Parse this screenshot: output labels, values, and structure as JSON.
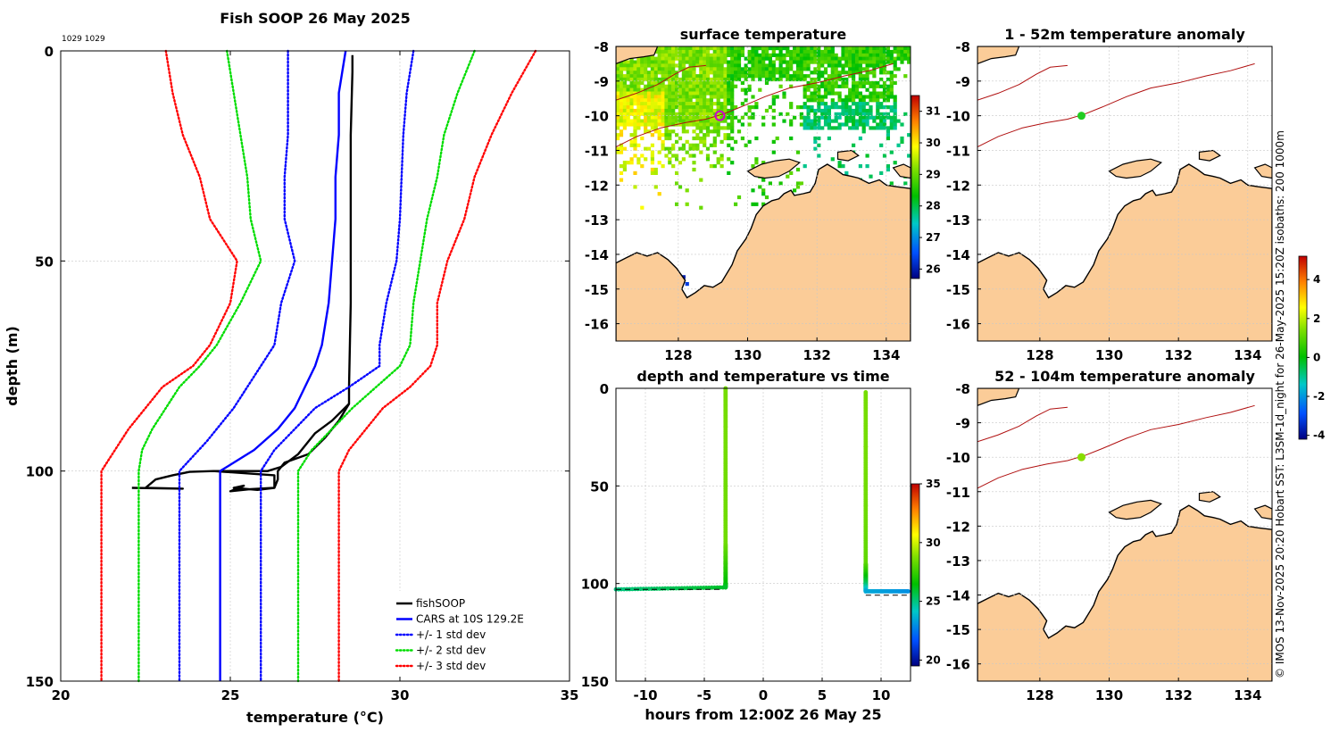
{
  "chart_data": [
    {
      "type": "line",
      "id": "profile",
      "title": "Fish SOOP 26 May 2025",
      "annotation": "1029 1029",
      "xlabel": "temperature (°C)",
      "ylabel": "depth (m)",
      "xlim": [
        20,
        35
      ],
      "ylim": [
        150,
        0
      ],
      "xticks": [
        "20",
        "25",
        "30",
        "35"
      ],
      "yticks": [
        "0",
        "50",
        "100",
        "150"
      ],
      "series": [
        {
          "name": "fishSOOP",
          "color": "#000000",
          "style": "solid",
          "points": [
            [
              28.6,
              1
            ],
            [
              28.6,
              5
            ],
            [
              28.55,
              20
            ],
            [
              28.55,
              40
            ],
            [
              28.55,
              60
            ],
            [
              28.5,
              80
            ],
            [
              28.5,
              84
            ],
            [
              28.2,
              88
            ],
            [
              27.8,
              92
            ],
            [
              27.3,
              96
            ],
            [
              26.6,
              98
            ],
            [
              26.4,
              100
            ],
            [
              26.4,
              102
            ],
            [
              26.3,
              104
            ],
            [
              25.8,
              104.5
            ],
            [
              25.1,
              104
            ],
            [
              25.4,
              103.5
            ],
            [
              25.0,
              104.8
            ],
            [
              25.6,
              104.3
            ],
            [
              26.3,
              104
            ],
            [
              26.3,
              101
            ],
            [
              24.5,
              100
            ],
            [
              23.8,
              100.2
            ],
            [
              23.3,
              101
            ],
            [
              22.8,
              102
            ],
            [
              22.5,
              104
            ],
            [
              23.6,
              104.2
            ],
            [
              22.1,
              104
            ]
          ]
        },
        {
          "name": "",
          "color": "#000000",
          "style": "solid",
          "points": [
            [
              28.5,
              84
            ],
            [
              28.0,
              88
            ],
            [
              27.5,
              91
            ],
            [
              27.2,
              94
            ],
            [
              27.0,
              96
            ],
            [
              26.5,
              99
            ],
            [
              26.1,
              100
            ],
            [
              24.5,
              100
            ]
          ]
        },
        {
          "name": "CARS at 10S 129.2E",
          "color": "#0000ff",
          "style": "solid",
          "points": [
            [
              28.4,
              0
            ],
            [
              28.3,
              5
            ],
            [
              28.2,
              10
            ],
            [
              28.2,
              20
            ],
            [
              28.1,
              30
            ],
            [
              28.1,
              40
            ],
            [
              28.0,
              50
            ],
            [
              27.9,
              60
            ],
            [
              27.7,
              70
            ],
            [
              27.5,
              75
            ],
            [
              27.2,
              80
            ],
            [
              26.9,
              85
            ],
            [
              26.4,
              90
            ],
            [
              25.7,
              95
            ],
            [
              24.7,
              100
            ],
            [
              24.7,
              105
            ],
            [
              24.7,
              110
            ],
            [
              24.7,
              150
            ]
          ]
        },
        {
          "name": "+/- 1 std dev",
          "color": "#0000ff",
          "style": "dotted",
          "points": [
            [
              30.4,
              0
            ],
            [
              30.2,
              10
            ],
            [
              30.1,
              20
            ],
            [
              30.0,
              40
            ],
            [
              29.9,
              50
            ],
            [
              29.6,
              60
            ],
            [
              29.4,
              70
            ],
            [
              29.4,
              75
            ],
            [
              28.5,
              80
            ],
            [
              27.5,
              85
            ],
            [
              26.9,
              90
            ],
            [
              26.3,
              95
            ],
            [
              25.9,
              100
            ],
            [
              25.9,
              150
            ]
          ]
        },
        {
          "name": "",
          "color": "#0000ff",
          "style": "dotted",
          "points": [
            [
              26.7,
              0
            ],
            [
              26.7,
              10
            ],
            [
              26.7,
              20
            ],
            [
              26.6,
              30
            ],
            [
              26.6,
              40
            ],
            [
              26.9,
              50
            ],
            [
              26.5,
              60
            ],
            [
              26.3,
              70
            ],
            [
              25.9,
              75
            ],
            [
              25.1,
              85
            ],
            [
              24.3,
              93
            ],
            [
              23.5,
              100
            ],
            [
              23.5,
              150
            ]
          ]
        },
        {
          "name": "+/- 2 std dev",
          "color": "#00dd00",
          "style": "dotted",
          "points": [
            [
              32.2,
              0
            ],
            [
              31.7,
              10
            ],
            [
              31.3,
              20
            ],
            [
              31.1,
              30
            ],
            [
              30.8,
              40
            ],
            [
              30.6,
              50
            ],
            [
              30.4,
              60
            ],
            [
              30.3,
              70
            ],
            [
              30.0,
              75
            ],
            [
              29.3,
              80
            ],
            [
              28.6,
              85
            ],
            [
              28.0,
              90
            ],
            [
              27.4,
              95
            ],
            [
              27.0,
              100
            ],
            [
              27.0,
              150
            ]
          ]
        },
        {
          "name": "",
          "color": "#00dd00",
          "style": "dotted",
          "points": [
            [
              24.9,
              0
            ],
            [
              25.1,
              10
            ],
            [
              25.3,
              20
            ],
            [
              25.5,
              30
            ],
            [
              25.6,
              40
            ],
            [
              25.9,
              50
            ],
            [
              25.3,
              60
            ],
            [
              24.6,
              70
            ],
            [
              24.1,
              75
            ],
            [
              23.5,
              80
            ],
            [
              23.1,
              85
            ],
            [
              22.7,
              90
            ],
            [
              22.4,
              95
            ],
            [
              22.3,
              100
            ],
            [
              22.3,
              150
            ]
          ]
        },
        {
          "name": "+/- 3 std dev",
          "color": "#ff0000",
          "style": "dotted",
          "points": [
            [
              34.0,
              0
            ],
            [
              33.3,
              10
            ],
            [
              32.7,
              20
            ],
            [
              32.2,
              30
            ],
            [
              31.9,
              40
            ],
            [
              31.4,
              50
            ],
            [
              31.1,
              60
            ],
            [
              31.1,
              70
            ],
            [
              30.9,
              75
            ],
            [
              30.3,
              80
            ],
            [
              29.5,
              85
            ],
            [
              29.0,
              90
            ],
            [
              28.5,
              95
            ],
            [
              28.2,
              100
            ],
            [
              28.2,
              150
            ]
          ]
        },
        {
          "name": "",
          "color": "#ff0000",
          "style": "dotted",
          "points": [
            [
              23.1,
              0
            ],
            [
              23.3,
              10
            ],
            [
              23.6,
              20
            ],
            [
              24.1,
              30
            ],
            [
              24.4,
              40
            ],
            [
              25.2,
              50
            ],
            [
              25.0,
              60
            ],
            [
              24.4,
              70
            ],
            [
              23.9,
              75
            ],
            [
              23.0,
              80
            ],
            [
              22.5,
              85
            ],
            [
              22.0,
              90
            ],
            [
              21.6,
              95
            ],
            [
              21.2,
              100
            ],
            [
              21.2,
              150
            ]
          ]
        }
      ],
      "legend": [
        {
          "label": "fishSOOP",
          "color": "#000000",
          "style": "solid"
        },
        {
          "label": "CARS at 10S 129.2E",
          "color": "#0000ff",
          "style": "solid"
        },
        {
          "label": "+/- 1 std dev",
          "color": "#0000ff",
          "style": "dotted"
        },
        {
          "label": "+/- 2 std dev",
          "color": "#00dd00",
          "style": "dotted"
        },
        {
          "label": "+/- 3 std dev",
          "color": "#ff0000",
          "style": "dotted"
        }
      ],
      "legend_position": "bottom-right"
    },
    {
      "type": "heatmap",
      "id": "sst",
      "title": "surface temperature",
      "xlim": [
        126.2,
        134.7
      ],
      "ylim": [
        -16.5,
        -8
      ],
      "xticks": [
        "128",
        "130",
        "132",
        "134"
      ],
      "yticks": [
        "-8",
        "-9",
        "-10",
        "-11",
        "-12",
        "-13",
        "-14",
        "-15",
        "-16"
      ],
      "colorbar": {
        "range": [
          25.7,
          31.5
        ],
        "ticks": [
          "26",
          "27",
          "28",
          "29",
          "30",
          "31"
        ],
        "colors": [
          "#000080",
          "#0050ff",
          "#00c8c8",
          "#00c000",
          "#80e000",
          "#ffff00",
          "#ff8000",
          "#c00000"
        ]
      },
      "marker": {
        "lon": 129.2,
        "lat": -10,
        "color": "#cc00cc"
      },
      "land_color": "#fbcc98"
    },
    {
      "type": "heatmap",
      "id": "anom1",
      "title": "1 - 52m temperature anomaly",
      "xlim": [
        126.2,
        134.7
      ],
      "ylim": [
        -16.5,
        -8
      ],
      "xticks": [
        "128",
        "130",
        "132",
        "134"
      ],
      "yticks": [
        "-8",
        "-9",
        "-10",
        "-11",
        "-12",
        "-13",
        "-14",
        "-15",
        "-16"
      ],
      "colorbar": {
        "range": [
          -4.2,
          5.2
        ],
        "ticks": [
          "-4",
          "-2",
          "0",
          "2",
          "4"
        ],
        "colors": [
          "#000080",
          "#0050ff",
          "#00c8c8",
          "#00c000",
          "#80e000",
          "#ffff00",
          "#ff8000",
          "#c00000"
        ]
      },
      "marker": {
        "lon": 129.2,
        "lat": -10,
        "color": "#22cc22"
      },
      "land_color": "#fbcc98"
    },
    {
      "type": "scatter",
      "id": "timeseries",
      "title": "depth and temperature vs time",
      "xlabel": "hours from 12:00Z 26 May 25",
      "xlim": [
        -12.5,
        12.5
      ],
      "ylim": [
        150,
        0
      ],
      "xticks": [
        "-10",
        "-5",
        "0",
        "5",
        "10"
      ],
      "yticks": [
        "0",
        "50",
        "100",
        "150"
      ],
      "colorbar": {
        "range": [
          19.5,
          35
        ],
        "ticks": [
          "20",
          "25",
          "30",
          "35"
        ],
        "colors": [
          "#000080",
          "#0050ff",
          "#00c8c8",
          "#00c000",
          "#80e000",
          "#ffff00",
          "#ff8000",
          "#c00000"
        ]
      },
      "segments": [
        {
          "points": [
            [
              -3.2,
              0,
              28.6
            ],
            [
              -3.2,
              20,
              28.6
            ],
            [
              -3.2,
              50,
              28.5
            ],
            [
              -3.2,
              80,
              28.5
            ],
            [
              -3.2,
              90,
              27.5
            ],
            [
              -3.2,
              100,
              26.5
            ],
            [
              -3.2,
              102,
              26.0
            ],
            [
              -12.5,
              103,
              25.0
            ]
          ]
        },
        {
          "points": [
            [
              8.7,
              2,
              28.6
            ],
            [
              8.7,
              30,
              28.6
            ],
            [
              8.7,
              60,
              28.5
            ],
            [
              8.7,
              90,
              28.2
            ],
            [
              8.7,
              95,
              27.0
            ],
            [
              8.7,
              100,
              25.5
            ],
            [
              8.7,
              104,
              23.5
            ],
            [
              12.3,
              104,
              23.0
            ]
          ]
        }
      ],
      "dashes": [
        {
          "x": [
            -12.5,
            -3.4
          ],
          "y": 103
        },
        {
          "x": [
            8.7,
            12.4
          ],
          "y": 106
        }
      ]
    },
    {
      "type": "heatmap",
      "id": "anom2",
      "title": "52 - 104m temperature anomaly",
      "xlim": [
        126.2,
        134.7
      ],
      "ylim": [
        -16.5,
        -8
      ],
      "xticks": [
        "128",
        "130",
        "132",
        "134"
      ],
      "yticks": [
        "-8",
        "-9",
        "-10",
        "-11",
        "-12",
        "-13",
        "-14",
        "-15",
        "-16"
      ],
      "marker": {
        "lon": 129.2,
        "lat": -10,
        "color": "#88dd00"
      },
      "land_color": "#fbcc98"
    }
  ],
  "side_note": "© IMOS 13-Nov-2025 20:20 Hobart SST: L3SM-1d_night for 26-May-2025 15:20Z isobaths: 200  1000m"
}
